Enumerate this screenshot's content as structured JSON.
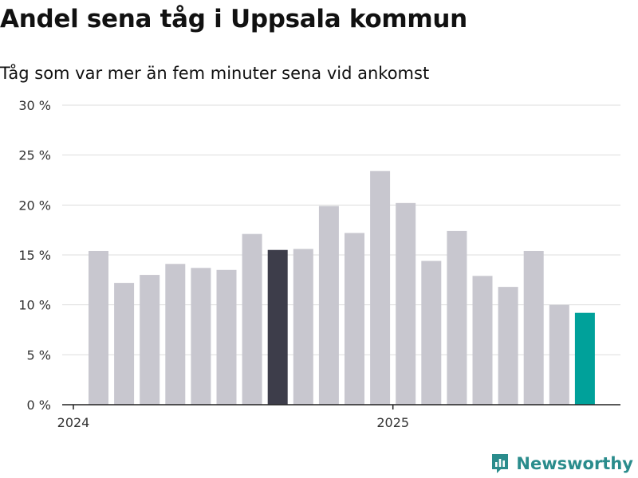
{
  "chart_data": {
    "type": "bar",
    "title": "Andel sena tåg i Uppsala kommun",
    "subtitle": "Tåg som var mer än fem minuter sena vid ankomst",
    "xlabel": "",
    "ylabel": "",
    "ylim": [
      0,
      30
    ],
    "yticks": [
      0,
      5,
      10,
      15,
      20,
      25,
      30
    ],
    "ytick_labels": [
      "0 %",
      "5 %",
      "10 %",
      "15 %",
      "20 %",
      "25 %",
      "30 %"
    ],
    "xtick_labels": [
      {
        "label": "2024",
        "index": 0
      },
      {
        "label": "2025",
        "index": 12
      }
    ],
    "grid": true,
    "values": [
      15.4,
      12.2,
      13.0,
      14.1,
      13.7,
      13.5,
      17.1,
      15.5,
      15.6,
      19.9,
      17.2,
      23.4,
      20.2,
      14.4,
      17.4,
      12.9,
      11.8,
      15.4,
      10.0,
      9.2
    ],
    "highlight": [
      {
        "index": 7,
        "color": "#3d3d4a"
      },
      {
        "index": 19,
        "color": "#00a19a"
      }
    ],
    "default_color": "#c8c7cf"
  },
  "brand": {
    "name": "Newsworthy",
    "color": "#2a8c8c"
  }
}
